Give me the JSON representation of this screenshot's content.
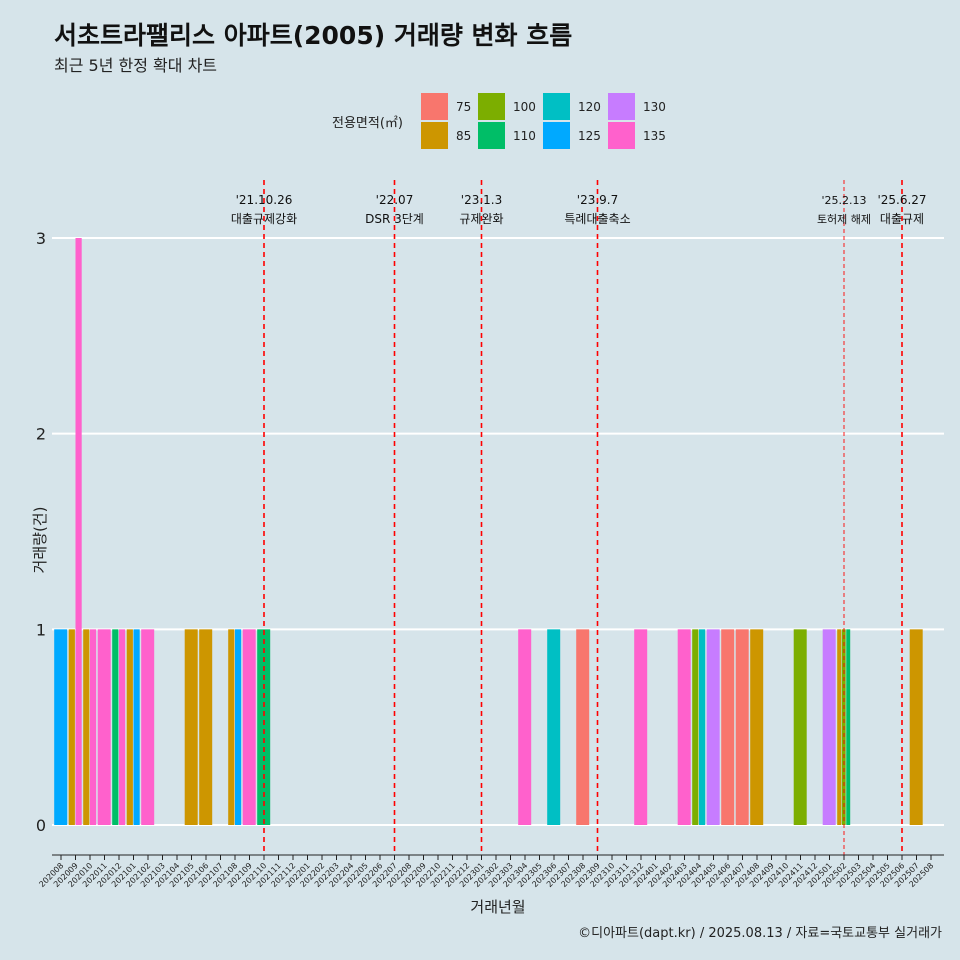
{
  "title": "서초트라팰리스 아파트(2005) 거래량 변화 흐름",
  "subtitle": "최근 5년 한정 확대 차트",
  "caption": "©디아파트(dapt.kr) / 2025.08.13 / 자료=국토교통부 실거래가",
  "legend": {
    "title": "전용면적(㎡)",
    "items": [
      {
        "label": "75",
        "color": "#F8766D"
      },
      {
        "label": "85",
        "color": "#CD9600"
      },
      {
        "label": "100",
        "color": "#7CAE00"
      },
      {
        "label": "110",
        "color": "#00BE67"
      },
      {
        "label": "120",
        "color": "#00BFC4"
      },
      {
        "label": "125",
        "color": "#00A9FF"
      },
      {
        "label": "130",
        "color": "#C77CFF"
      },
      {
        "label": "135",
        "color": "#FF61CC"
      }
    ]
  },
  "chart_data": {
    "type": "bar",
    "xlabel": "거래년월",
    "ylabel": "거래량(건)",
    "ylim": [
      0,
      3
    ],
    "yticks": [
      "0",
      "1",
      "2",
      "3"
    ],
    "categories": [
      "202008",
      "202009",
      "202010",
      "202011",
      "202012",
      "202101",
      "202102",
      "202103",
      "202104",
      "202105",
      "202106",
      "202107",
      "202108",
      "202109",
      "202110",
      "202111",
      "202112",
      "202201",
      "202202",
      "202203",
      "202204",
      "202205",
      "202206",
      "202207",
      "202208",
      "202209",
      "202210",
      "202211",
      "202212",
      "202301",
      "202302",
      "202303",
      "202304",
      "202305",
      "202306",
      "202307",
      "202308",
      "202309",
      "202310",
      "202311",
      "202312",
      "202401",
      "202402",
      "202403",
      "202404",
      "202405",
      "202406",
      "202407",
      "202408",
      "202409",
      "202410",
      "202411",
      "202412",
      "202501",
      "202502",
      "202503",
      "202504",
      "202505",
      "202506",
      "202507",
      "202508"
    ],
    "bars": [
      {
        "month": "202008",
        "area": "125",
        "value": 1
      },
      {
        "month": "202009",
        "area": "85",
        "value": 1
      },
      {
        "month": "202009",
        "area": "135",
        "value": 3
      },
      {
        "month": "202010",
        "area": "85",
        "value": 1
      },
      {
        "month": "202010",
        "area": "135",
        "value": 1
      },
      {
        "month": "202011",
        "area": "135",
        "value": 1
      },
      {
        "month": "202012",
        "area": "110",
        "value": 1
      },
      {
        "month": "202012",
        "area": "135",
        "value": 1
      },
      {
        "month": "202101",
        "area": "85",
        "value": 1
      },
      {
        "month": "202101",
        "area": "125",
        "value": 1
      },
      {
        "month": "202102",
        "area": "135",
        "value": 1
      },
      {
        "month": "202105",
        "area": "85",
        "value": 1
      },
      {
        "month": "202106",
        "area": "85",
        "value": 1
      },
      {
        "month": "202108",
        "area": "85",
        "value": 1
      },
      {
        "month": "202108",
        "area": "125",
        "value": 1
      },
      {
        "month": "202109",
        "area": "135",
        "value": 1
      },
      {
        "month": "202110",
        "area": "110",
        "value": 1
      },
      {
        "month": "202304",
        "area": "135",
        "value": 1
      },
      {
        "month": "202306",
        "area": "120",
        "value": 1
      },
      {
        "month": "202308",
        "area": "75",
        "value": 1
      },
      {
        "month": "202312",
        "area": "135",
        "value": 1
      },
      {
        "month": "202403",
        "area": "135",
        "value": 1
      },
      {
        "month": "202404",
        "area": "100",
        "value": 1
      },
      {
        "month": "202404",
        "area": "120",
        "value": 1
      },
      {
        "month": "202405",
        "area": "130",
        "value": 1
      },
      {
        "month": "202406",
        "area": "75",
        "value": 1
      },
      {
        "month": "202407",
        "area": "75",
        "value": 1
      },
      {
        "month": "202408",
        "area": "85",
        "value": 1
      },
      {
        "month": "202411",
        "area": "100",
        "value": 1
      },
      {
        "month": "202501",
        "area": "130",
        "value": 1
      },
      {
        "month": "202502",
        "area": "85",
        "value": 1
      },
      {
        "month": "202502",
        "area": "100",
        "value": 1
      },
      {
        "month": "202502",
        "area": "110",
        "value": 1
      },
      {
        "month": "202507",
        "area": "85",
        "value": 1
      }
    ],
    "events": [
      {
        "date": "'21.10.26",
        "label": "대출규제강화",
        "month": "202110",
        "style": "thick"
      },
      {
        "date": "'22.07",
        "label": "DSR 3단계",
        "month": "202207",
        "style": "thick"
      },
      {
        "date": "'23.1.3",
        "label": "규제완화",
        "month": "202301",
        "style": "thick"
      },
      {
        "date": "'23.9.7",
        "label": "특례대출축소",
        "month": "202309",
        "style": "thick"
      },
      {
        "date": "'25.2.13",
        "label": "토허제 해제",
        "month": "202502",
        "style": "thin"
      },
      {
        "date": "'25.6.27",
        "label": "대출규제",
        "month": "202506",
        "style": "thick"
      }
    ],
    "grid": true,
    "legend_position": "top"
  }
}
